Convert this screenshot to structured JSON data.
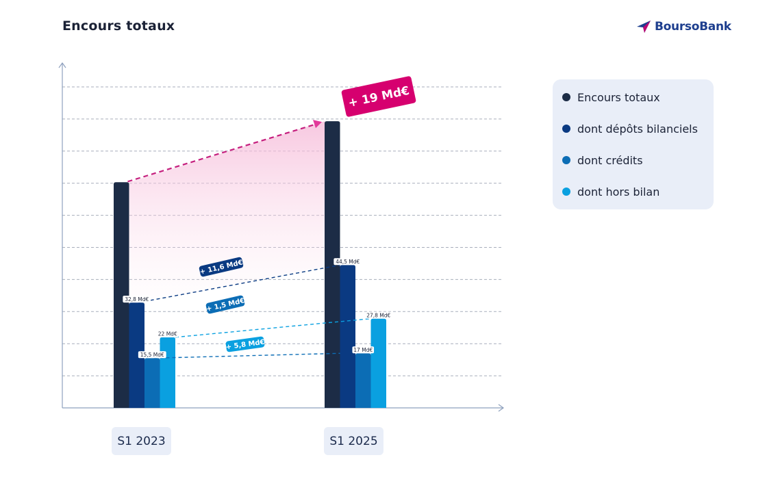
{
  "page_title": "Encours totaux",
  "logo": {
    "text": "BoursoBank",
    "colors": {
      "mark": "#1d3e8e",
      "accent": "#d6006f"
    }
  },
  "chart_data": {
    "type": "bar",
    "title": "Encours totaux",
    "categories": [
      "S1 2023",
      "S1 2025"
    ],
    "series": [
      {
        "name": "Encours totaux",
        "color": "#1c2c46",
        "values": [
          70.3,
          89.3
        ]
      },
      {
        "name": "dont dépôts bilanciels",
        "color": "#0a3a82",
        "values": [
          32.8,
          44.5
        ]
      },
      {
        "name": "dont crédits",
        "color": "#0c6db5",
        "values": [
          15.5,
          17
        ]
      },
      {
        "name": "dont hors bilan",
        "color": "#0aa0e0",
        "values": [
          22,
          27.8
        ]
      }
    ],
    "data_labels": {
      "dont dépôts bilanciels": [
        "32,8 Md€",
        "44,5 Md€"
      ],
      "dont crédits": [
        "15,5 Md€",
        "17 Md€"
      ],
      "dont hors bilan": [
        "22 Md€",
        "27,8 Md€"
      ]
    },
    "annotations": [
      {
        "label": "+ 19 Md€",
        "series": "Encours totaux",
        "color": "#d6006f"
      },
      {
        "label": "+ 11,6 Md€",
        "series": "dont dépôts bilanciels",
        "color": "#0a3a82"
      },
      {
        "label": "+ 1,5 Md€",
        "series": "dont crédits",
        "color": "#0c6db5"
      },
      {
        "label": "+ 5,8 Md€",
        "series": "dont hors bilan",
        "color": "#0aa0e0"
      }
    ],
    "ylim": [
      0,
      100
    ],
    "grid": true,
    "legend_position": "right"
  }
}
